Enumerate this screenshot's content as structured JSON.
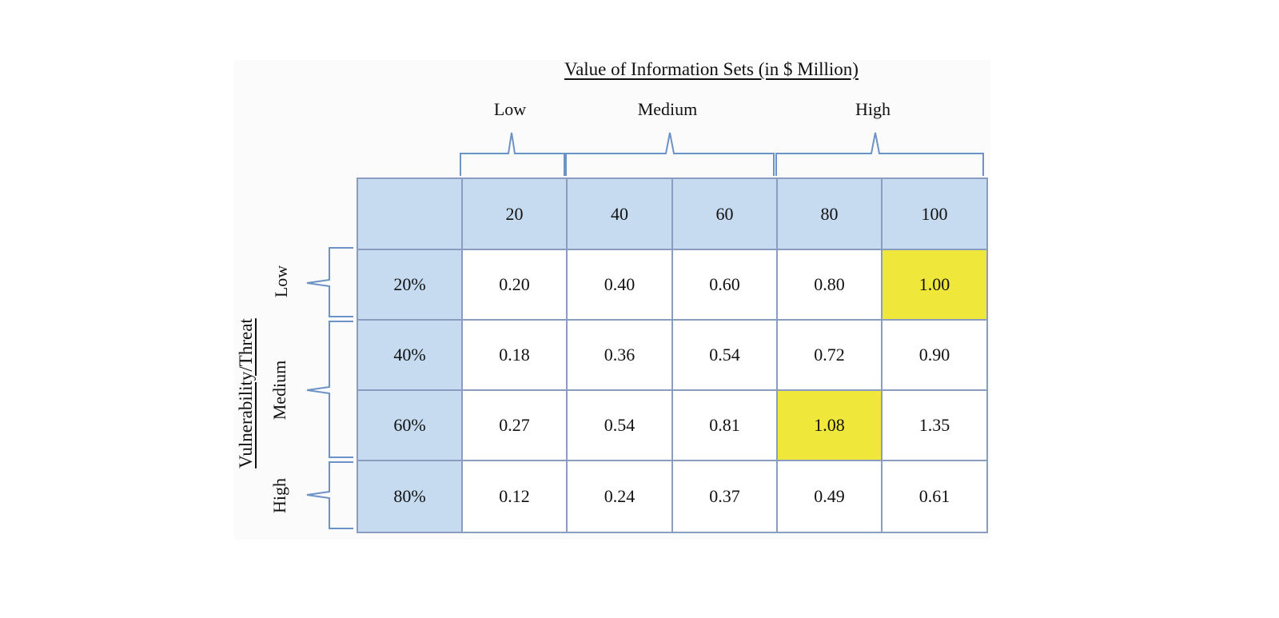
{
  "title": "Value of Information Sets (in $ Million)",
  "y_axis_label": "Vulnerability/Threat",
  "column_groups": [
    {
      "label": "Low"
    },
    {
      "label": "Medium"
    },
    {
      "label": "High"
    }
  ],
  "row_groups": [
    {
      "label": "Low"
    },
    {
      "label": "Medium"
    },
    {
      "label": "High"
    }
  ],
  "columns": [
    "20",
    "40",
    "60",
    "80",
    "100"
  ],
  "rows": [
    {
      "label": "20%",
      "values": [
        "0.20",
        "0.40",
        "0.60",
        "0.80",
        "1.00"
      ]
    },
    {
      "label": "40%",
      "values": [
        "0.18",
        "0.36",
        "0.54",
        "0.72",
        "0.90"
      ]
    },
    {
      "label": "60%",
      "values": [
        "0.27",
        "0.54",
        "0.81",
        "1.08",
        "1.35"
      ]
    },
    {
      "label": "80%",
      "values": [
        "0.12",
        "0.24",
        "0.37",
        "0.49",
        "0.61"
      ]
    }
  ],
  "highlighted_cells": [
    [
      0,
      4
    ],
    [
      2,
      3
    ],
    [
      2,
      4
    ]
  ],
  "colors": {
    "header_fill": "#c6dbf0",
    "highlight_fill": "#efe83a",
    "grid": "#8a9cbf",
    "bracket": "#6d93c6"
  }
}
